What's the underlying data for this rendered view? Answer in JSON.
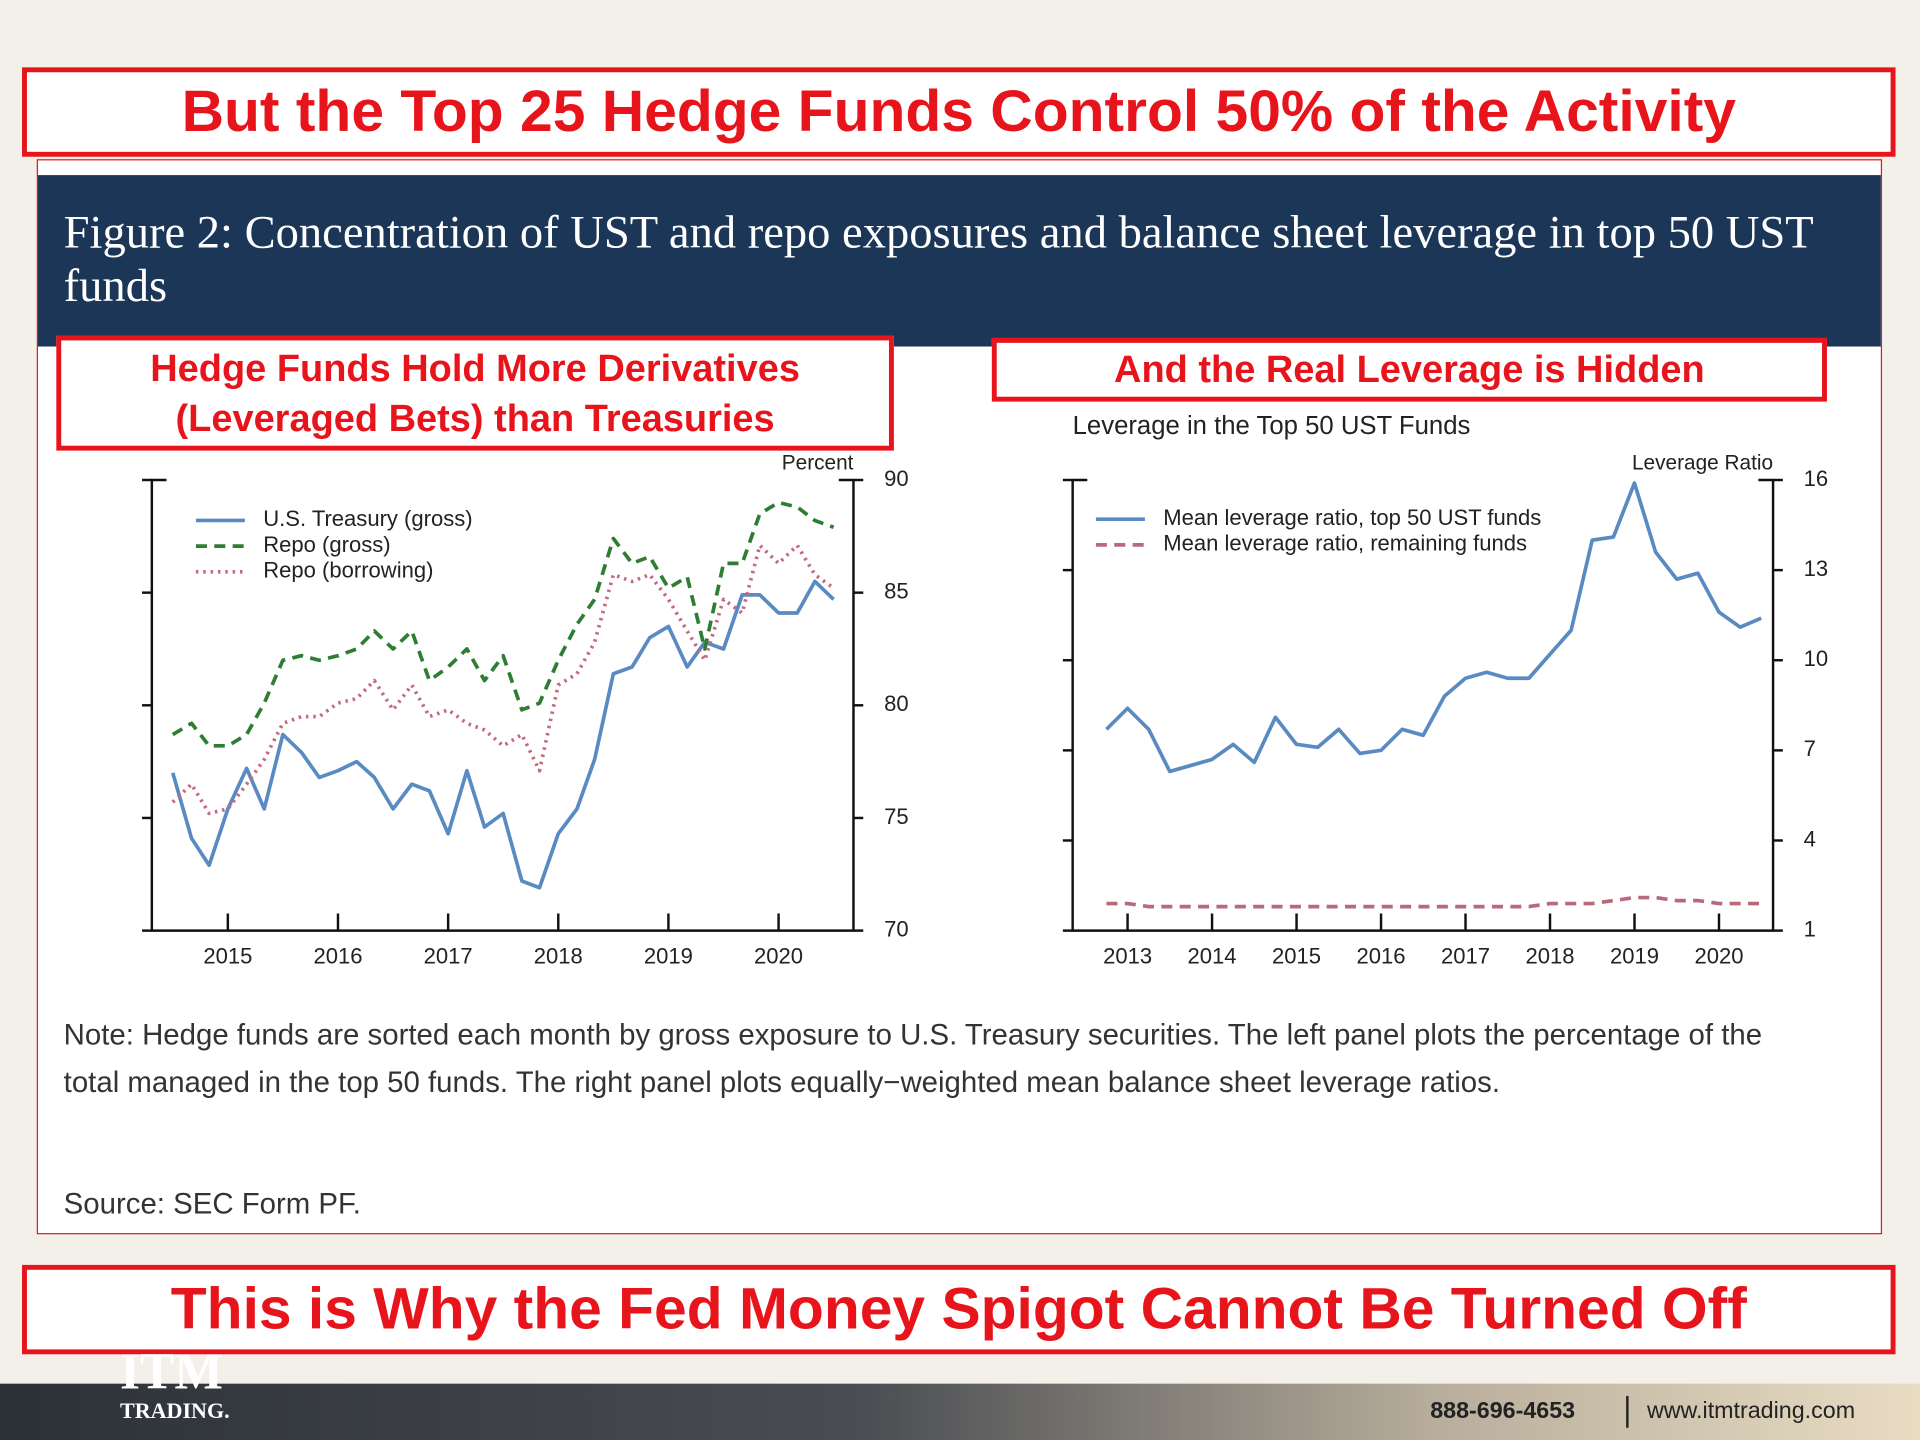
{
  "header": {
    "title": "But the Top 25 Hedge Funds Control 50% of the Activity"
  },
  "figure": {
    "title": "Figure 2: Concentration of UST and repo exposures and balance sheet leverage in top 50 UST funds",
    "note": "Note: Hedge funds are sorted each month by gross exposure to U.S. Treasury securities. The left panel plots the percentage of the total managed in the top 50 funds. The right panel plots equally−weighted mean balance sheet leverage ratios.",
    "source": "Source: SEC Form PF."
  },
  "callouts": [
    "Hedge Funds Hold More Derivatives (Leveraged Bets) than Treasuries",
    "And the Real Leverage is Hidden"
  ],
  "chart_data": [
    {
      "type": "line",
      "y_axis_label": "Percent",
      "xlim": [
        2014.31,
        2020.68
      ],
      "xticks": [
        2015,
        2016,
        2017,
        2018,
        2019,
        2020
      ],
      "ylim": [
        70,
        90
      ],
      "yticks": [
        70,
        75,
        80,
        85,
        90
      ],
      "x": [
        2014.5,
        2014.67,
        2014.83,
        2015,
        2015.17,
        2015.33,
        2015.5,
        2015.67,
        2015.83,
        2016,
        2016.17,
        2016.33,
        2016.5,
        2016.67,
        2016.83,
        2017,
        2017.17,
        2017.33,
        2017.5,
        2017.67,
        2017.83,
        2018,
        2018.17,
        2018.33,
        2018.5,
        2018.67,
        2018.83,
        2019,
        2019.17,
        2019.33,
        2019.5,
        2019.67,
        2019.83,
        2020,
        2020.17,
        2020.33,
        2020.5
      ],
      "series": [
        {
          "name": "U.S. Treasury (gross)",
          "color": "#5a8ac2",
          "style": "solid",
          "values": [
            77.0,
            74.1,
            72.9,
            75.4,
            77.2,
            75.4,
            78.7,
            77.9,
            76.8,
            77.1,
            77.5,
            76.8,
            75.4,
            76.5,
            76.2,
            74.3,
            77.1,
            74.6,
            75.2,
            72.2,
            71.9,
            74.3,
            75.4,
            77.6,
            81.4,
            81.7,
            83.0,
            83.5,
            81.7,
            82.8,
            82.5,
            84.9,
            84.9,
            84.1,
            84.1,
            85.5,
            84.7
          ]
        },
        {
          "name": "Repo (gross)",
          "color": "#2e7d32",
          "style": "dashed",
          "values": [
            78.7,
            79.2,
            78.2,
            78.2,
            78.7,
            80.1,
            82.0,
            82.2,
            82.0,
            82.2,
            82.5,
            83.3,
            82.5,
            83.3,
            81.1,
            81.7,
            82.5,
            81.1,
            82.2,
            79.8,
            80.1,
            82.0,
            83.6,
            84.7,
            87.4,
            86.3,
            86.6,
            85.2,
            85.7,
            82.5,
            86.3,
            86.3,
            88.5,
            89.0,
            88.8,
            88.2,
            87.9
          ]
        },
        {
          "name": "Repo (borrowing)",
          "color": "#c46a7c",
          "style": "dotted",
          "values": [
            75.7,
            76.5,
            75.2,
            75.4,
            76.5,
            77.6,
            79.2,
            79.5,
            79.5,
            80.1,
            80.3,
            81.1,
            79.8,
            80.9,
            79.5,
            79.8,
            79.2,
            78.9,
            78.2,
            78.7,
            77.1,
            80.9,
            81.4,
            82.8,
            85.8,
            85.5,
            85.8,
            84.7,
            83.3,
            82.0,
            84.7,
            84.1,
            87.1,
            86.3,
            87.1,
            85.8,
            85.2
          ]
        }
      ]
    },
    {
      "type": "line",
      "title": "Leverage in the Top 50 UST Funds",
      "y_axis_label": "Leverage Ratio",
      "xlim": [
        2012.35,
        2020.64
      ],
      "xticks": [
        2013,
        2014,
        2015,
        2016,
        2017,
        2018,
        2019,
        2020
      ],
      "ylim": [
        1,
        16
      ],
      "yticks": [
        1,
        4,
        7,
        10,
        13,
        16
      ],
      "x": [
        2012.75,
        2013,
        2013.25,
        2013.5,
        2013.75,
        2014,
        2014.25,
        2014.5,
        2014.75,
        2015,
        2015.25,
        2015.5,
        2015.75,
        2016,
        2016.25,
        2016.5,
        2016.75,
        2017,
        2017.25,
        2017.5,
        2017.75,
        2018,
        2018.25,
        2018.5,
        2018.75,
        2019,
        2019.25,
        2019.5,
        2019.75,
        2020,
        2020.25,
        2020.5
      ],
      "series": [
        {
          "name": "Mean leverage ratio, top 50 UST funds",
          "color": "#5a8ac2",
          "style": "solid",
          "values": [
            7.7,
            8.4,
            7.7,
            6.3,
            6.5,
            6.7,
            7.2,
            6.6,
            8.1,
            7.2,
            7.1,
            7.7,
            6.9,
            7.0,
            7.7,
            7.5,
            8.8,
            9.4,
            9.6,
            9.4,
            9.4,
            10.2,
            11.0,
            14.0,
            14.1,
            15.9,
            13.6,
            12.7,
            12.9,
            11.6,
            11.1,
            11.4
          ]
        },
        {
          "name": "Mean leverage ratio, remaining funds",
          "color": "#b86a7a",
          "style": "dashed",
          "values": [
            1.9,
            1.9,
            1.8,
            1.8,
            1.8,
            1.8,
            1.8,
            1.8,
            1.8,
            1.8,
            1.8,
            1.8,
            1.8,
            1.8,
            1.8,
            1.8,
            1.8,
            1.8,
            1.8,
            1.8,
            1.8,
            1.9,
            1.9,
            1.9,
            2.0,
            2.1,
            2.1,
            2.0,
            2.0,
            1.9,
            1.9,
            1.9
          ]
        }
      ]
    }
  ],
  "footer": {
    "banner": "This is Why the Fed Money Spigot Cannot Be Turned Off",
    "logo": "ITM",
    "logo_sub": "TRADING.",
    "phone": "888-696-4653",
    "website": "www.itmtrading.com"
  }
}
